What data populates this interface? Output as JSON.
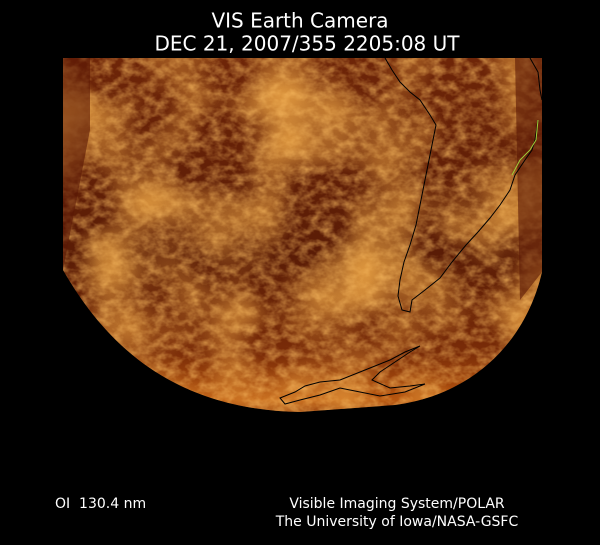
{
  "header": {
    "title": "VIS Earth Camera",
    "timestamp": "DEC 21, 2007/355 2205:08 UT"
  },
  "footer": {
    "wavelength": "OI  130.4 nm",
    "instrument": "Visible Imaging System/POLAR",
    "credit": "The University of Iowa/NASA-GSFC"
  }
}
